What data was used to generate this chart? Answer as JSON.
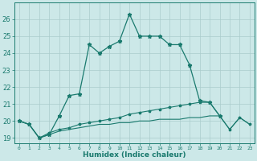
{
  "xlabel": "Humidex (Indice chaleur)",
  "x_values": [
    0,
    1,
    2,
    3,
    4,
    5,
    6,
    7,
    8,
    9,
    10,
    11,
    12,
    13,
    14,
    15,
    16,
    17,
    18,
    19,
    20,
    21,
    22,
    23
  ],
  "line1": [
    20.0,
    19.8,
    19.0,
    19.2,
    20.3,
    21.5,
    21.6,
    24.5,
    24.0,
    24.4,
    24.7,
    26.3,
    25.0,
    25.0,
    25.0,
    24.5,
    24.5,
    23.3,
    21.2,
    21.1,
    20.3,
    null,
    null,
    null
  ],
  "line2": [
    20.0,
    19.8,
    19.0,
    19.3,
    19.5,
    19.6,
    19.8,
    19.9,
    20.0,
    20.1,
    20.2,
    20.4,
    20.5,
    20.6,
    20.7,
    20.8,
    20.9,
    21.0,
    21.1,
    21.1,
    20.3,
    19.5,
    20.2,
    19.8
  ],
  "line3": [
    20.0,
    19.8,
    19.0,
    19.2,
    19.4,
    19.5,
    19.6,
    19.7,
    19.8,
    19.8,
    19.9,
    19.9,
    20.0,
    20.0,
    20.1,
    20.1,
    20.1,
    20.2,
    20.2,
    20.3,
    20.3,
    19.5,
    20.2,
    19.8
  ],
  "line_color": "#1a7a6e",
  "bg_color": "#cce8e8",
  "grid_color": "#aacccc",
  "ylim": [
    18.7,
    27.0
  ],
  "yticks": [
    19,
    20,
    21,
    22,
    23,
    24,
    25,
    26
  ],
  "xlim": [
    -0.5,
    23.5
  ],
  "xtick_labels": [
    "0",
    "1",
    "2",
    "3",
    "4",
    "5",
    "6",
    "7",
    "8",
    "9",
    "10",
    "11",
    "12",
    "13",
    "14",
    "15",
    "16",
    "17",
    "18",
    "19",
    "20",
    "21",
    "22",
    "23"
  ]
}
